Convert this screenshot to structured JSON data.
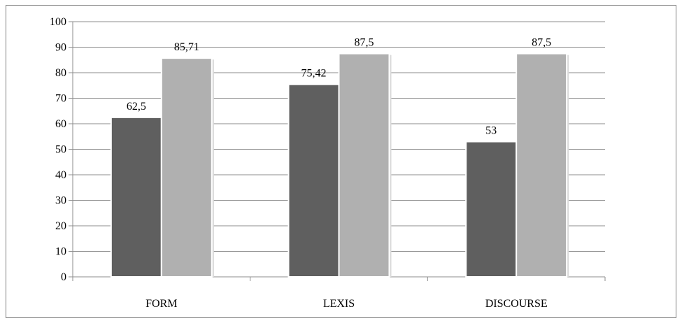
{
  "chart_data": {
    "type": "bar",
    "title": "",
    "xlabel": "",
    "ylabel": "",
    "categories": [
      "FORM",
      "LEXIS",
      "DISCOURSE"
    ],
    "series": [
      {
        "values": [
          62.5,
          75.42,
          53
        ],
        "labels": [
          "62,5",
          "75,42",
          "53"
        ],
        "color": "#5f5f5f"
      },
      {
        "values": [
          85.71,
          87.5,
          87.5
        ],
        "labels": [
          "85,71",
          "87,5",
          "87,5"
        ],
        "color": "#b0b0b0"
      }
    ],
    "ylim": [
      0,
      100
    ],
    "yticks": [
      "0",
      "10",
      "20",
      "30",
      "40",
      "50",
      "60",
      "70",
      "80",
      "90",
      "100"
    ],
    "grid": true,
    "legend": "none"
  }
}
